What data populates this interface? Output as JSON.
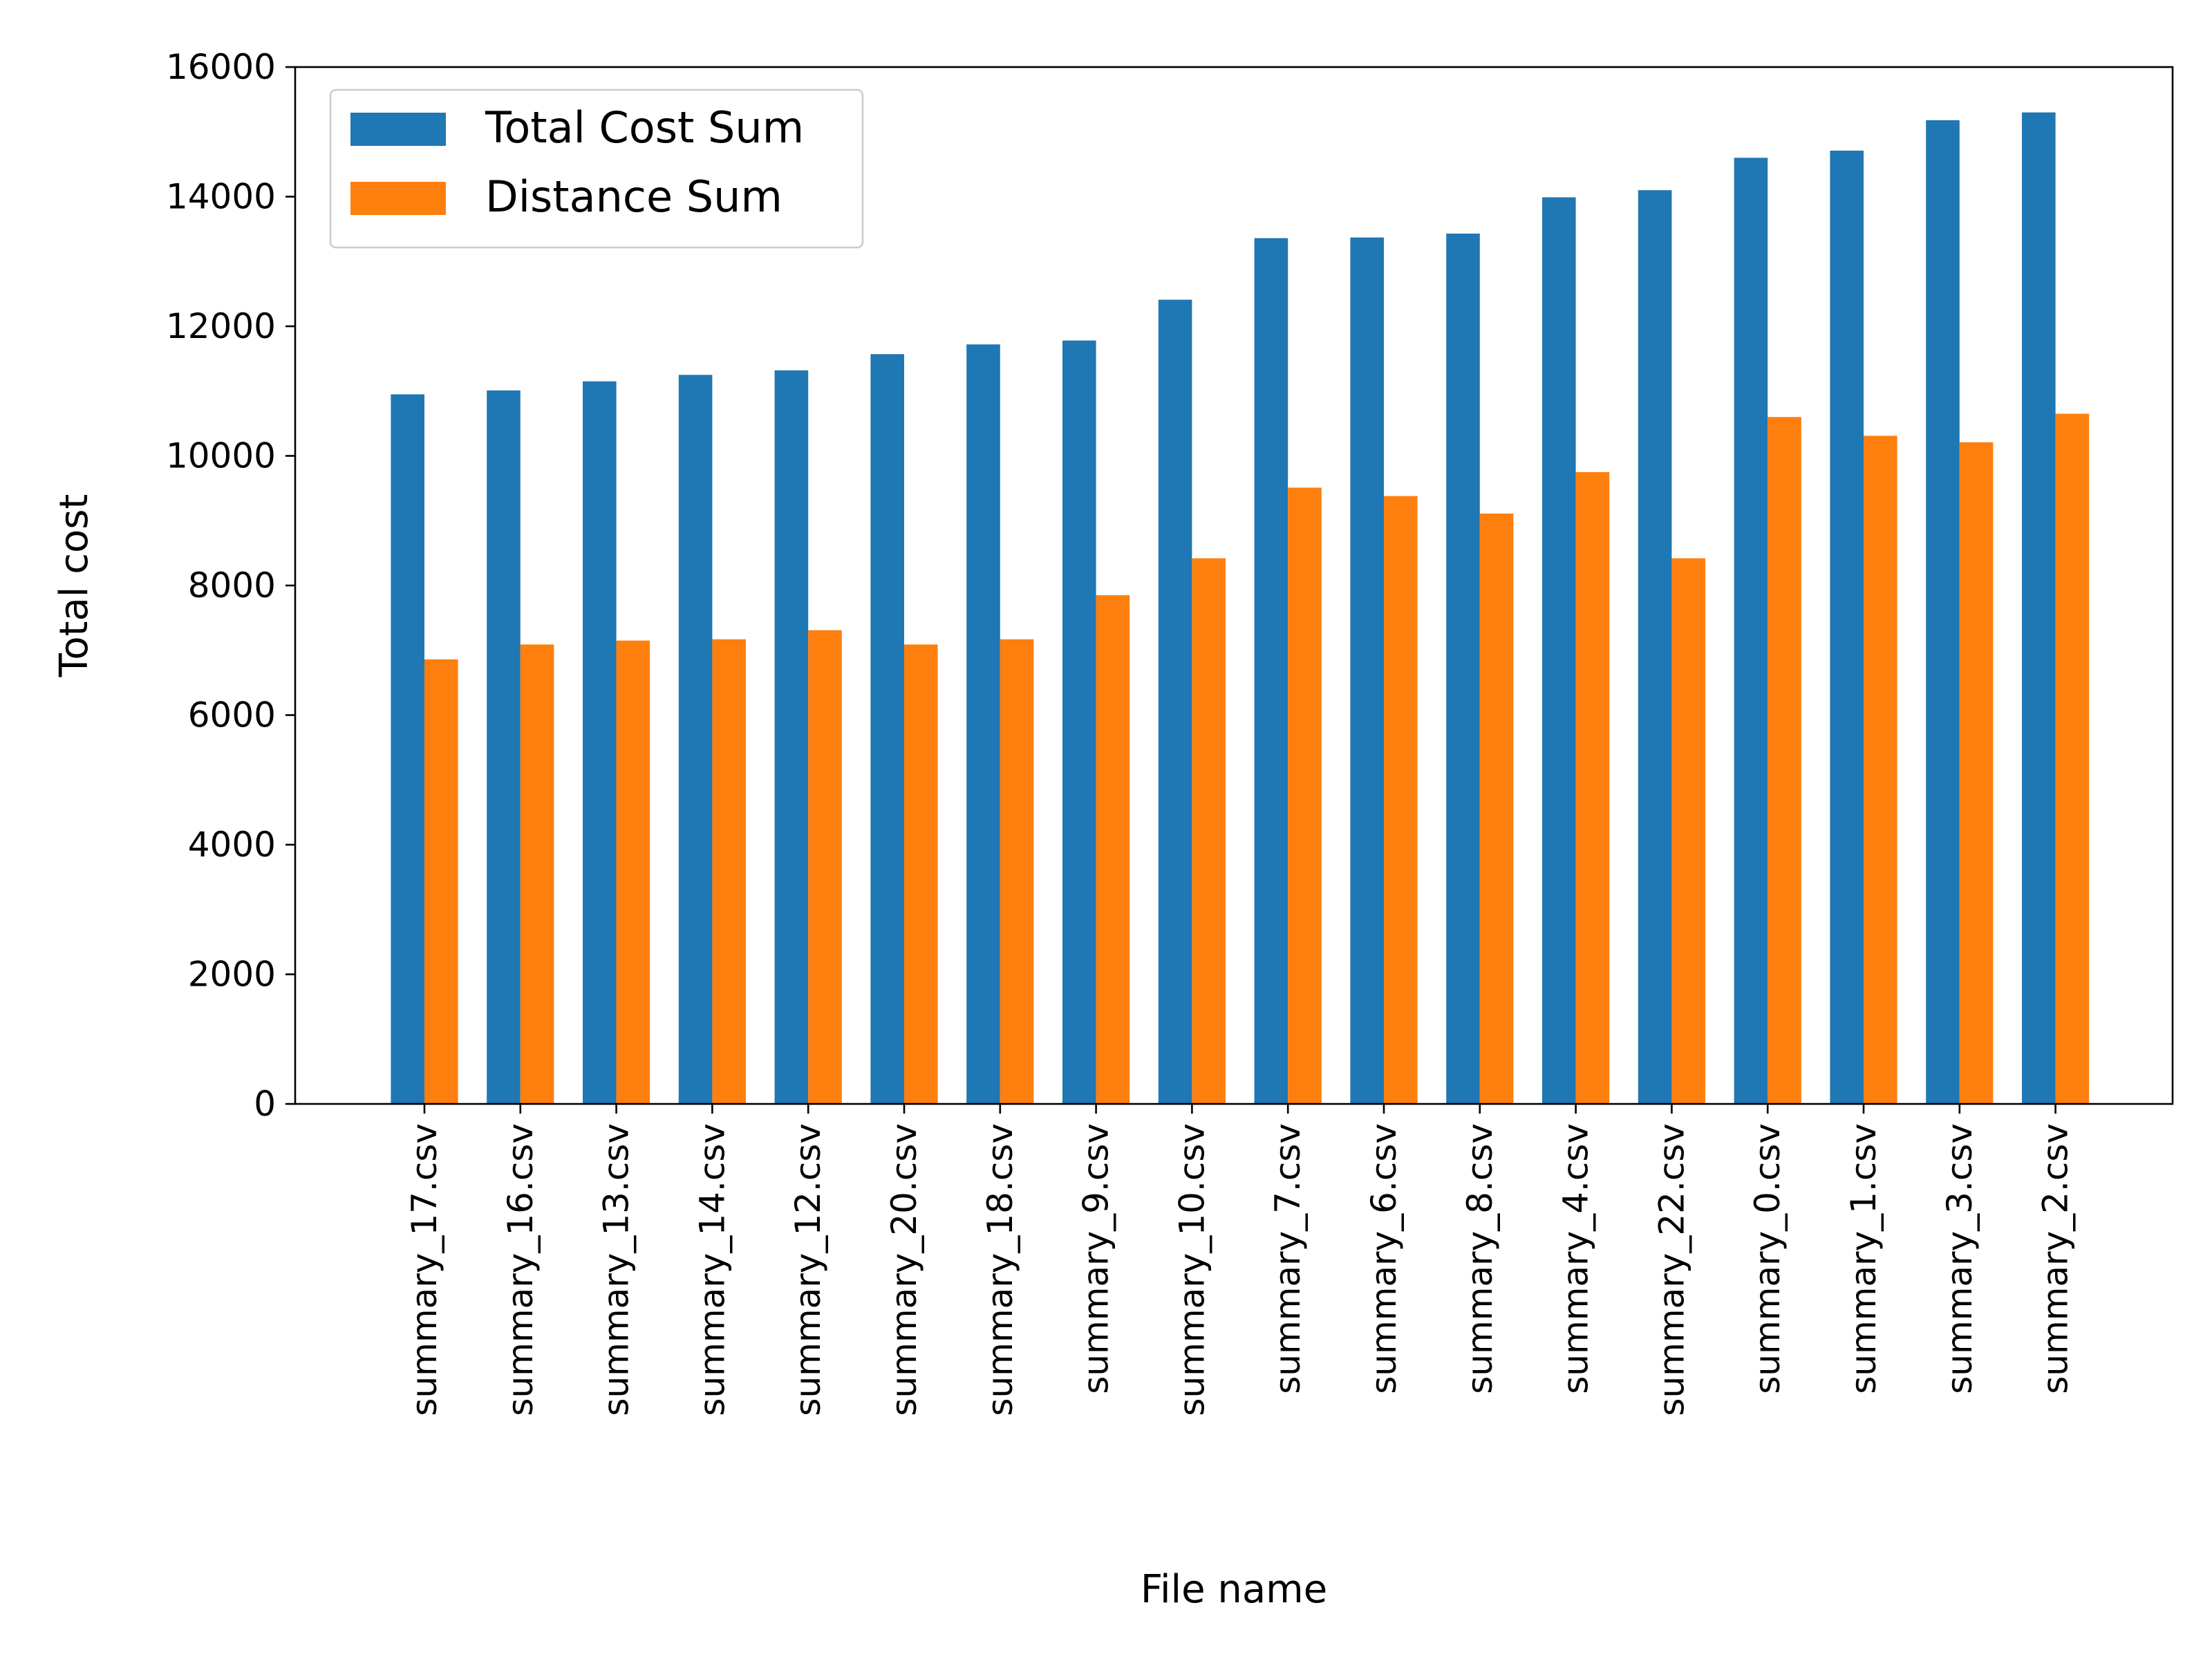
{
  "chart_data": {
    "type": "bar",
    "xlabel": "File name",
    "ylabel": "Total cost",
    "ylim": [
      0,
      16000
    ],
    "yticks": [
      0,
      2000,
      4000,
      6000,
      8000,
      10000,
      12000,
      14000,
      16000
    ],
    "grid": false,
    "legend_position": "top-left",
    "categories": [
      "summary_17.csv",
      "summary_16.csv",
      "summary_13.csv",
      "summary_14.csv",
      "summary_12.csv",
      "summary_20.csv",
      "summary_18.csv",
      "summary_9.csv",
      "summary_10.csv",
      "summary_7.csv",
      "summary_6.csv",
      "summary_8.csv",
      "summary_4.csv",
      "summary_22.csv",
      "summary_0.csv",
      "summary_1.csv",
      "summary_3.csv",
      "summary_2.csv"
    ],
    "series": [
      {
        "name": "Total Cost Sum",
        "color": "#1f77b4",
        "values": [
          10950,
          11010,
          11150,
          11250,
          11320,
          11570,
          11720,
          11780,
          12410,
          13360,
          13370,
          13430,
          13990,
          14100,
          14600,
          14710,
          15180,
          15300
        ]
      },
      {
        "name": "Distance Sum",
        "color": "#ff7f0e",
        "values": [
          6860,
          7090,
          7150,
          7170,
          7310,
          7090,
          7170,
          7850,
          8420,
          9510,
          9380,
          9110,
          9750,
          8420,
          10600,
          10310,
          10210,
          10650
        ]
      }
    ]
  }
}
